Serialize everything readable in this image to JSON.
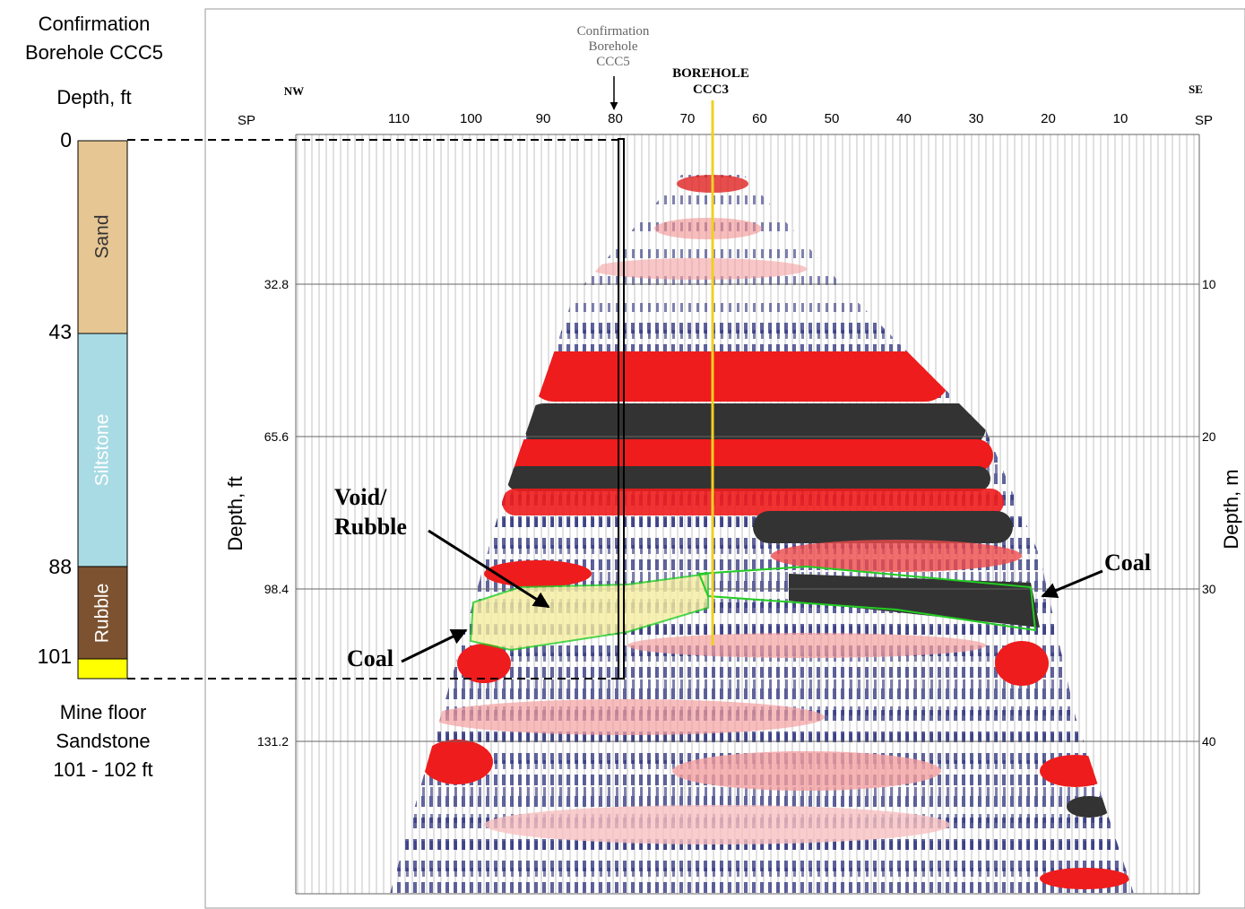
{
  "log": {
    "title": [
      "Confirmation",
      "Borehole CCC5"
    ],
    "axis_label": "Depth, ft",
    "depth_labels": [
      "0",
      "43",
      "88",
      "101"
    ],
    "layers": [
      "Sand",
      "Siltstone",
      "Rubble"
    ],
    "note": [
      "Mine floor",
      "Sandstone",
      "101 - 102 ft"
    ]
  },
  "section": {
    "left_end": "NW",
    "right_end": "SE",
    "sp_left": "SP",
    "sp_right": "SP",
    "sp_ticks": [
      "110",
      "100",
      "90",
      "80",
      "70",
      "60",
      "50",
      "40",
      "30",
      "20",
      "10"
    ],
    "depth_ft_ticks": [
      "32.8",
      "65.6",
      "98.4",
      "131.2"
    ],
    "depth_m_ticks": [
      "10",
      "20",
      "30",
      "40"
    ],
    "y_label_left": "Depth, ft",
    "y_label_right": "Depth, m",
    "confirmation_label": [
      "Confirmation",
      "Borehole",
      "CCC5"
    ],
    "borehole_label": [
      "BOREHOLE",
      "CCC3"
    ],
    "void_label": [
      "Void/",
      "Rubble"
    ],
    "coal_left": "Coal",
    "coal_right": "Coal"
  }
}
